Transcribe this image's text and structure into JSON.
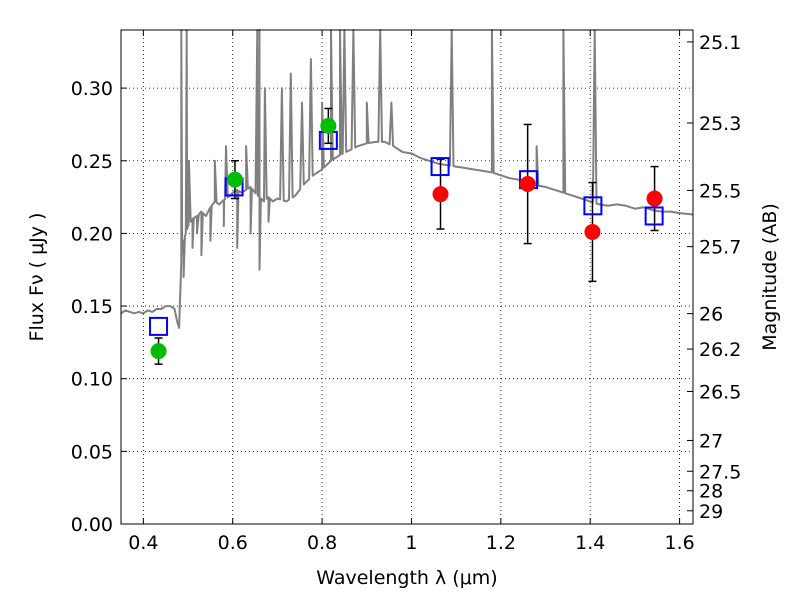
{
  "chart_data": {
    "type": "scatter",
    "title": "",
    "xlabel": "Wavelength  λ (μm)",
    "ylabel": "Flux  Fν  ( μJy )",
    "ylabel_right": "Magnitude (AB)",
    "xlim": [
      0.35,
      1.63
    ],
    "ylim": [
      0.0,
      0.34
    ],
    "grid": true,
    "x_ticks": [
      0.4,
      0.6,
      0.8,
      1.0,
      1.2,
      1.4,
      1.6
    ],
    "x_tick_labels": [
      "0.4",
      "0.6",
      "0.8",
      "1",
      "1.2",
      "1.4",
      "1.6"
    ],
    "y_ticks": [
      0.0,
      0.05,
      0.1,
      0.15,
      0.2,
      0.25,
      0.3
    ],
    "y_tick_labels": [
      "0.00",
      "0.05",
      "0.10",
      "0.15",
      "0.20",
      "0.25",
      "0.30"
    ],
    "right_ticks": [
      {
        "label": "25.1",
        "flux": 0.3318
      },
      {
        "label": "25.3",
        "flux": 0.276
      },
      {
        "label": "25.5",
        "flux": 0.2296
      },
      {
        "label": "25.7",
        "flux": 0.1909
      },
      {
        "label": "26",
        "flux": 0.1448
      },
      {
        "label": "26.2",
        "flux": 0.1204
      },
      {
        "label": "26.5",
        "flux": 0.0912
      },
      {
        "label": "27",
        "flux": 0.0575
      },
      {
        "label": "27.5",
        "flux": 0.0363
      },
      {
        "label": "28",
        "flux": 0.0229
      },
      {
        "label": "29",
        "flux": 0.0091
      }
    ],
    "colors": {
      "template": "#808080",
      "model_box": "#0000ff",
      "green": "#00bb00",
      "red": "#ff0000",
      "errorbar": "#000000",
      "grid": "#000000"
    },
    "series": [
      {
        "kind": "template_spectrum",
        "points": [
          [
            0.35,
            0.145
          ],
          [
            0.36,
            0.147
          ],
          [
            0.37,
            0.146
          ],
          [
            0.38,
            0.145
          ],
          [
            0.39,
            0.146
          ],
          [
            0.4,
            0.145
          ],
          [
            0.41,
            0.147
          ],
          [
            0.42,
            0.146
          ],
          [
            0.43,
            0.148
          ],
          [
            0.44,
            0.148
          ],
          [
            0.45,
            0.15
          ],
          [
            0.46,
            0.15
          ],
          [
            0.47,
            0.148
          ],
          [
            0.475,
            0.14
          ],
          [
            0.48,
            0.135
          ],
          [
            0.485,
            0.18
          ],
          [
            0.49,
            0.195
          ],
          [
            0.495,
            0.2
          ],
          [
            0.5,
            0.205
          ],
          [
            0.51,
            0.21
          ],
          [
            0.52,
            0.212
          ],
          [
            0.53,
            0.215
          ],
          [
            0.54,
            0.212
          ],
          [
            0.55,
            0.218
          ],
          [
            0.56,
            0.222
          ],
          [
            0.57,
            0.22
          ],
          [
            0.58,
            0.223
          ],
          [
            0.59,
            0.225
          ],
          [
            0.6,
            0.228
          ],
          [
            0.61,
            0.23
          ],
          [
            0.62,
            0.228
          ],
          [
            0.63,
            0.23
          ],
          [
            0.64,
            0.232
          ],
          [
            0.65,
            0.228
          ],
          [
            0.66,
            0.225
          ],
          [
            0.67,
            0.222
          ],
          [
            0.68,
            0.225
          ],
          [
            0.69,
            0.222
          ],
          [
            0.7,
            0.224
          ],
          [
            0.72,
            0.222
          ],
          [
            0.74,
            0.226
          ],
          [
            0.75,
            0.23
          ],
          [
            0.76,
            0.234
          ],
          [
            0.78,
            0.24
          ],
          [
            0.8,
            0.244
          ],
          [
            0.82,
            0.25
          ],
          [
            0.84,
            0.254
          ],
          [
            0.86,
            0.257
          ],
          [
            0.88,
            0.26
          ],
          [
            0.9,
            0.262
          ],
          [
            0.92,
            0.263
          ],
          [
            0.94,
            0.263
          ],
          [
            0.96,
            0.26
          ],
          [
            0.98,
            0.256
          ],
          [
            1.0,
            0.255
          ],
          [
            1.02,
            0.252
          ],
          [
            1.04,
            0.25
          ],
          [
            1.06,
            0.248
          ],
          [
            1.08,
            0.247
          ],
          [
            1.1,
            0.246
          ],
          [
            1.12,
            0.245
          ],
          [
            1.14,
            0.244
          ],
          [
            1.16,
            0.243
          ],
          [
            1.18,
            0.242
          ],
          [
            1.2,
            0.24
          ],
          [
            1.22,
            0.238
          ],
          [
            1.24,
            0.237
          ],
          [
            1.26,
            0.236
          ],
          [
            1.28,
            0.233
          ],
          [
            1.3,
            0.232
          ],
          [
            1.32,
            0.23
          ],
          [
            1.34,
            0.228
          ],
          [
            1.36,
            0.226
          ],
          [
            1.38,
            0.224
          ],
          [
            1.4,
            0.222
          ],
          [
            1.42,
            0.22
          ],
          [
            1.44,
            0.219
          ],
          [
            1.46,
            0.22
          ],
          [
            1.48,
            0.219
          ],
          [
            1.5,
            0.217
          ],
          [
            1.52,
            0.218
          ],
          [
            1.54,
            0.216
          ],
          [
            1.56,
            0.215
          ],
          [
            1.58,
            0.215
          ],
          [
            1.6,
            0.214
          ],
          [
            1.63,
            0.213
          ]
        ],
        "emission_lines": [
          [
            0.485,
            0.34
          ],
          [
            0.497,
            0.34
          ],
          [
            0.502,
            0.25
          ],
          [
            0.52,
            0.2
          ],
          [
            0.56,
            0.25
          ],
          [
            0.585,
            0.26
          ],
          [
            0.63,
            0.26
          ],
          [
            0.655,
            0.34
          ],
          [
            0.66,
            0.34
          ],
          [
            0.672,
            0.3
          ],
          [
            0.71,
            0.3
          ],
          [
            0.73,
            0.31
          ],
          [
            0.755,
            0.29
          ],
          [
            0.775,
            0.32
          ],
          [
            0.8,
            0.29
          ],
          [
            0.82,
            0.34
          ],
          [
            0.84,
            0.34
          ],
          [
            0.85,
            0.34
          ],
          [
            0.87,
            0.34
          ],
          [
            0.9,
            0.29
          ],
          [
            0.93,
            0.34
          ],
          [
            0.955,
            0.29
          ],
          [
            1.09,
            0.34
          ],
          [
            1.18,
            0.34
          ],
          [
            1.28,
            0.26
          ],
          [
            1.34,
            0.34
          ],
          [
            1.41,
            0.34
          ]
        ],
        "dips": [
          [
            0.49,
            0.17
          ],
          [
            0.51,
            0.19
          ],
          [
            0.53,
            0.185
          ],
          [
            0.55,
            0.195
          ],
          [
            0.58,
            0.205
          ],
          [
            0.61,
            0.19
          ],
          [
            0.64,
            0.2
          ],
          [
            0.66,
            0.175
          ],
          [
            0.68,
            0.208
          ]
        ]
      },
      {
        "kind": "model_boxes",
        "x": [
          0.434,
          0.603,
          0.814,
          1.064,
          1.262,
          1.406,
          1.543
        ],
        "y": [
          0.136,
          0.232,
          0.264,
          0.246,
          0.237,
          0.219,
          0.212
        ]
      },
      {
        "kind": "observed_green",
        "x": [
          0.434,
          0.605,
          0.814
        ],
        "y": [
          0.119,
          0.237,
          0.274
        ],
        "yerr": [
          0.009,
          0.013,
          0.012
        ]
      },
      {
        "kind": "observed_red",
        "x": [
          1.065,
          1.26,
          1.405,
          1.544
        ],
        "y": [
          0.227,
          0.234,
          0.201,
          0.224
        ],
        "yerr": [
          0.024,
          0.041,
          0.034,
          0.022
        ]
      }
    ]
  }
}
